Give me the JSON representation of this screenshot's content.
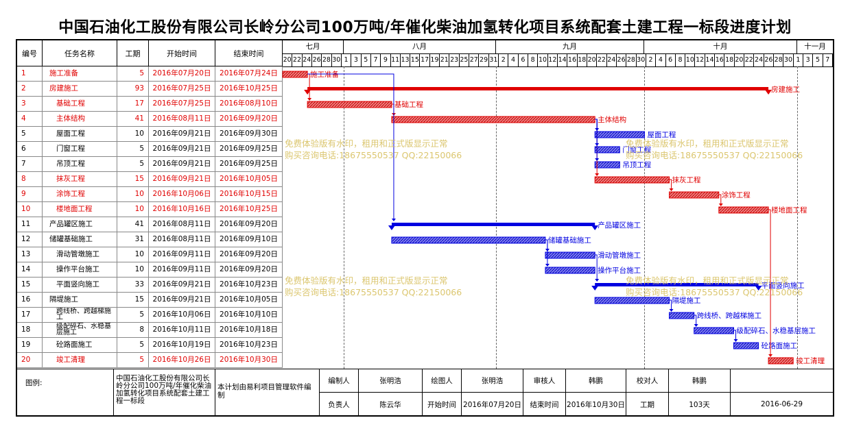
{
  "title": "中国石油化工股份有限公司长岭分公司100万吨/年催化柴油加氢转化项目系统配套土建工程一标段进度计划",
  "headers": {
    "id": "编号",
    "name": "任务名称",
    "dur": "工期",
    "start": "开始时间",
    "end": "结束时间"
  },
  "months": [
    "七月",
    "八月",
    "九月",
    "十月",
    "十一月"
  ],
  "days": [
    "20",
    "22",
    "24",
    "26",
    "28",
    "30",
    "1",
    "3",
    "5",
    "7",
    "9",
    "11",
    "13",
    "15",
    "17",
    "19",
    "21",
    "23",
    "25",
    "27",
    "29",
    "31",
    "2",
    "4",
    "6",
    "8",
    "10",
    "12",
    "14",
    "16",
    "18",
    "20",
    "22",
    "24",
    "26",
    "28",
    "30",
    "2",
    "4",
    "6",
    "8",
    "10",
    "12",
    "14",
    "16",
    "18",
    "20",
    "22",
    "24",
    "26",
    "28",
    "30",
    "1",
    "3",
    "5",
    "7"
  ],
  "tasks": [
    {
      "id": "1",
      "name": "施工准备",
      "dur": "5",
      "start": "2016年07月20日",
      "end": "2016年07月24日",
      "red": true,
      "label": "施工准备"
    },
    {
      "id": "2",
      "name": "房建施工",
      "dur": "93",
      "start": "2016年07月25日",
      "end": "2016年10月25日",
      "red": true,
      "label": "房建施工"
    },
    {
      "id": "3",
      "name": "基础工程",
      "dur": "17",
      "start": "2016年07月25日",
      "end": "2016年08月10日",
      "red": true,
      "label": "基础工程"
    },
    {
      "id": "4",
      "name": "主体结构",
      "dur": "41",
      "start": "2016年08月11日",
      "end": "2016年09月20日",
      "red": true,
      "label": "主体结构"
    },
    {
      "id": "5",
      "name": "屋面工程",
      "dur": "10",
      "start": "2016年09月21日",
      "end": "2016年09月30日",
      "red": false,
      "label": "屋面工程"
    },
    {
      "id": "6",
      "name": "门窗工程",
      "dur": "5",
      "start": "2016年09月21日",
      "end": "2016年09月25日",
      "red": false,
      "label": "门窗工程"
    },
    {
      "id": "7",
      "name": "吊顶工程",
      "dur": "5",
      "start": "2016年09月21日",
      "end": "2016年09月25日",
      "red": false,
      "label": "吊顶工程"
    },
    {
      "id": "8",
      "name": "抹灰工程",
      "dur": "15",
      "start": "2016年09月21日",
      "end": "2016年10月05日",
      "red": true,
      "label": "抹灰工程"
    },
    {
      "id": "9",
      "name": "涂饰工程",
      "dur": "10",
      "start": "2016年10月06日",
      "end": "2016年10月15日",
      "red": true,
      "label": "涂饰工程"
    },
    {
      "id": "10",
      "name": "楼地面工程",
      "dur": "10",
      "start": "2016年10月16日",
      "end": "2016年10月25日",
      "red": true,
      "label": "楼地面工程"
    },
    {
      "id": "11",
      "name": "产品罐区施工",
      "dur": "41",
      "start": "2016年08月11日",
      "end": "2016年09月20日",
      "red": false,
      "label": "产品罐区施工"
    },
    {
      "id": "12",
      "name": "储罐基础施工",
      "dur": "31",
      "start": "2016年08月11日",
      "end": "2016年09月10日",
      "red": false,
      "label": "储罐基础施工"
    },
    {
      "id": "13",
      "name": "滑动管墩施工",
      "dur": "10",
      "start": "2016年09月11日",
      "end": "2016年09月20日",
      "red": false,
      "label": "滑动管墩施工"
    },
    {
      "id": "14",
      "name": "操作平台施工",
      "dur": "10",
      "start": "2016年09月11日",
      "end": "2016年09月20日",
      "red": false,
      "label": "操作平台施工"
    },
    {
      "id": "15",
      "name": "平面竖向施工",
      "dur": "33",
      "start": "2016年09月21日",
      "end": "2016年10月23日",
      "red": false,
      "label": "平面竖向施工"
    },
    {
      "id": "16",
      "name": "隔堤施工",
      "dur": "15",
      "start": "2016年09月21日",
      "end": "2016年10月05日",
      "red": false,
      "label": "隔堤施工"
    },
    {
      "id": "17",
      "name": "跨线桥、跨越梯施工",
      "dur": "5",
      "start": "2016年10月06日",
      "end": "2016年10月10日",
      "red": false,
      "label": "跨线桥、跨越梯施工"
    },
    {
      "id": "18",
      "name": "级配碎石、水稳基层施工",
      "dur": "8",
      "start": "2016年10月11日",
      "end": "2016年10月18日",
      "red": false,
      "label": "级配碎石、水稳基层施工"
    },
    {
      "id": "19",
      "name": "砼路面施工",
      "dur": "5",
      "start": "2016年10月19日",
      "end": "2016年10月23日",
      "red": false,
      "label": "砼路面施工"
    },
    {
      "id": "20",
      "name": "竣工清理",
      "dur": "5",
      "start": "2016年10月26日",
      "end": "2016年10月30日",
      "red": true,
      "label": "竣工清理"
    }
  ],
  "watermark": {
    "line1": "免费体验版有水印，租用和正式版显示正常",
    "line2": "购买咨询电话:18675550537 QQ:22150066"
  },
  "footer": {
    "legend_label": "图例:",
    "project": "中国石油化工股份有限公司长岭分公司100万吨/年催化柴油加氢转化项目系统配套土建工程一标段",
    "note": "本计划由易利项目管理软件编制",
    "editor_label": "编制人",
    "editor": "张明浩",
    "drawer_label": "绘图人",
    "drawer": "张明浩",
    "reviewer_label": "审核人",
    "reviewer": "韩鹏",
    "checker_label": "校对人",
    "checker": "韩鹏",
    "owner_label": "负责人",
    "owner": "陈云华",
    "start_label": "开始时间",
    "start": "2016年07月20日",
    "end_label": "结束时间",
    "end": "2016年10月30日",
    "dur_label": "工期",
    "dur": "103天",
    "date": "2016-06-29"
  },
  "colors": {
    "red": "#e00000",
    "blue": "#0000e0"
  }
}
